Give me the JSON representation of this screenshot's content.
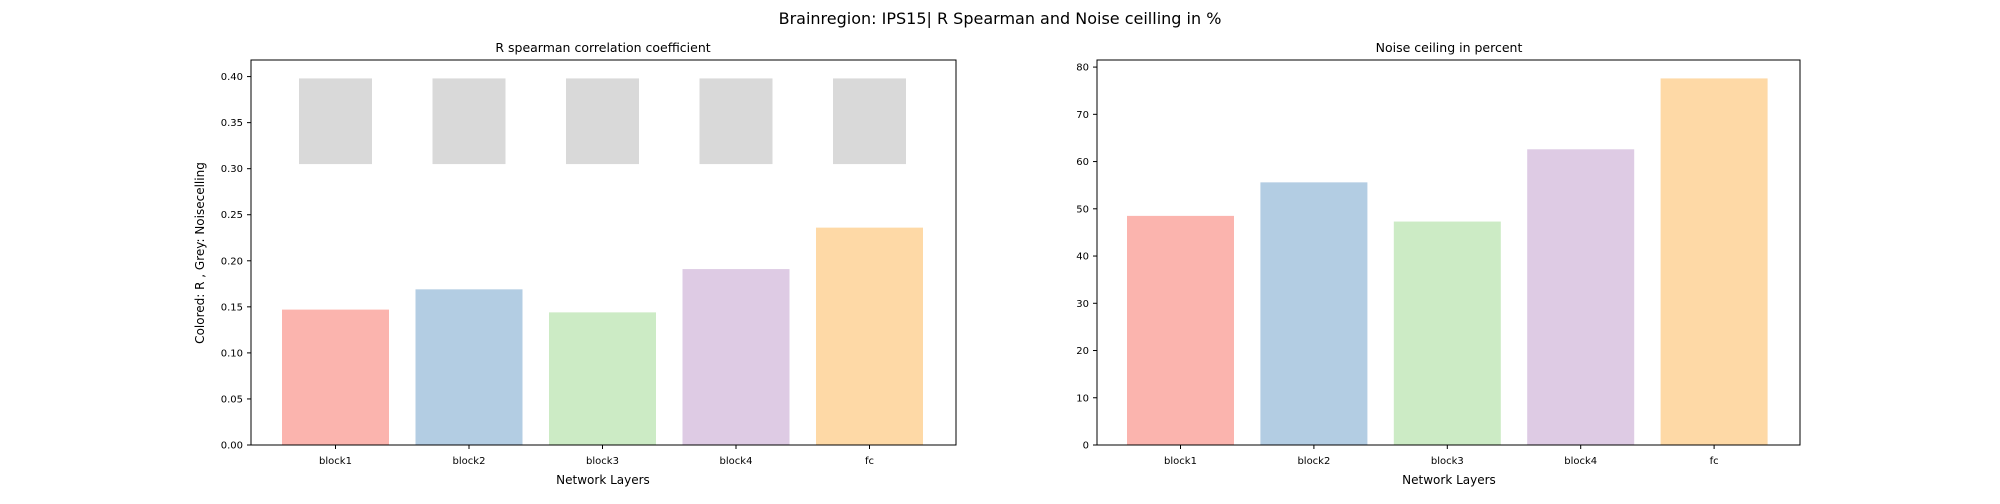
{
  "suptitle": "Brainregion: IPS15| R Spearman and Noise ceilling in %",
  "colors": [
    "#fbb4ae",
    "#b3cde3",
    "#ccebc5",
    "#decbe4",
    "#fed9a6"
  ],
  "noise_color": "#d9d9d9",
  "chart_data": [
    {
      "type": "bar",
      "title": "R spearman correlation coefficient",
      "xlabel": "Network Layers",
      "ylabel": "Colored: R , Grey: Noisecelling",
      "categories": [
        "block1",
        "block2",
        "block3",
        "block4",
        "fc"
      ],
      "values": [
        0.147,
        0.169,
        0.144,
        0.191,
        0.236
      ],
      "noise_ceiling": {
        "lower": [
          0.305,
          0.305,
          0.305,
          0.305,
          0.305
        ],
        "upper": [
          0.398,
          0.398,
          0.398,
          0.398,
          0.398
        ]
      },
      "ylim": [
        0,
        0.418
      ],
      "yticks": [
        "0.00",
        "0.05",
        "0.10",
        "0.15",
        "0.20",
        "0.25",
        "0.30",
        "0.35",
        "0.40"
      ],
      "grid": false
    },
    {
      "type": "bar",
      "title": "Noise ceiling in percent",
      "xlabel": "Network Layers",
      "ylabel": "",
      "categories": [
        "block1",
        "block2",
        "block3",
        "block4",
        "fc"
      ],
      "values": [
        48.5,
        55.6,
        47.3,
        62.6,
        77.6
      ],
      "ylim": [
        0,
        81.5
      ],
      "yticks": [
        "0",
        "10",
        "20",
        "30",
        "40",
        "50",
        "60",
        "70",
        "80"
      ],
      "grid": false
    }
  ]
}
